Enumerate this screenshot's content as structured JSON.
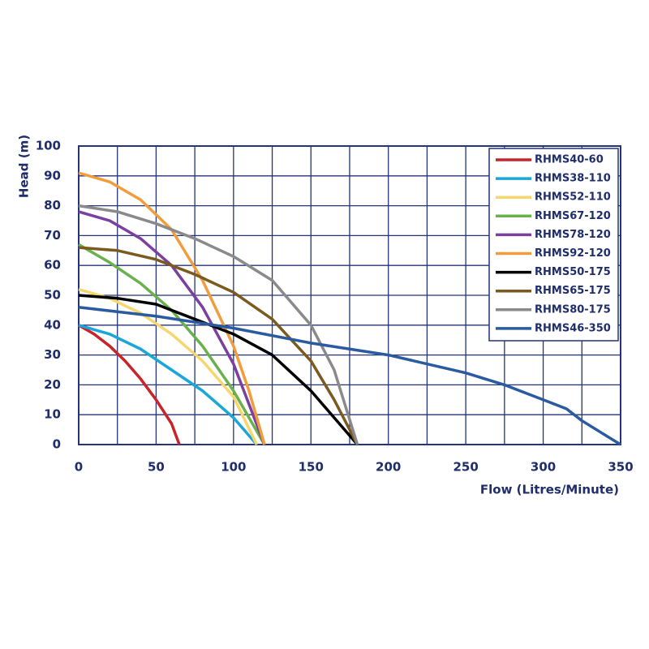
{
  "chart_data": {
    "type": "line",
    "x_label": "Flow (Litres/Minute)",
    "y_label": "Head (m)",
    "xlim": [
      0,
      350
    ],
    "xticks": [
      0,
      50,
      100,
      150,
      200,
      250,
      300,
      350
    ],
    "ylim": [
      0,
      100
    ],
    "yticks": [
      0,
      10,
      20,
      30,
      40,
      50,
      60,
      70,
      80,
      90,
      100
    ],
    "grid": true,
    "legend": "upper right",
    "series": [
      {
        "name": "RHMS40-60",
        "color": "#c8242b",
        "x": [
          0,
          10,
          20,
          30,
          40,
          50,
          60,
          65
        ],
        "values": [
          40,
          37,
          33,
          28,
          22,
          15,
          7,
          0
        ]
      },
      {
        "name": "RHMS38-110",
        "color": "#1aa7d8",
        "x": [
          0,
          20,
          40,
          60,
          80,
          100,
          115
        ],
        "values": [
          40,
          37,
          32,
          25,
          18,
          9,
          0
        ]
      },
      {
        "name": "RHMS52-110",
        "color": "#f5d76e",
        "x": [
          0,
          20,
          40,
          60,
          80,
          100,
          115
        ],
        "values": [
          52,
          49,
          44,
          37,
          28,
          16,
          0
        ]
      },
      {
        "name": "RHMS67-120",
        "color": "#6ab04c",
        "x": [
          0,
          20,
          40,
          60,
          80,
          100,
          120
        ],
        "values": [
          67,
          61,
          54,
          45,
          33,
          18,
          0
        ]
      },
      {
        "name": "RHMS78-120",
        "color": "#7b3fa0",
        "x": [
          0,
          20,
          40,
          60,
          80,
          100,
          120
        ],
        "values": [
          78,
          75,
          69,
          60,
          46,
          27,
          0
        ]
      },
      {
        "name": "RHMS92-120",
        "color": "#f39c3c",
        "x": [
          0,
          20,
          40,
          60,
          80,
          100,
          110,
          120
        ],
        "values": [
          91,
          88,
          82,
          72,
          55,
          33,
          18,
          0
        ]
      },
      {
        "name": "RHMS50-175",
        "color": "#000000",
        "x": [
          0,
          25,
          50,
          75,
          100,
          125,
          150,
          165,
          180
        ],
        "values": [
          50,
          49,
          47,
          42,
          37,
          30,
          18,
          9,
          0
        ]
      },
      {
        "name": "RHMS65-175",
        "color": "#7a5a1e",
        "x": [
          0,
          25,
          50,
          75,
          100,
          125,
          150,
          165,
          180
        ],
        "values": [
          66,
          65,
          62,
          57,
          51,
          42,
          28,
          15,
          0
        ]
      },
      {
        "name": "RHMS80-175",
        "color": "#8a8a8a",
        "x": [
          0,
          25,
          50,
          75,
          100,
          125,
          150,
          165,
          180
        ],
        "values": [
          80,
          78,
          74,
          69,
          63,
          55,
          40,
          25,
          0
        ]
      },
      {
        "name": "RHMS46-350",
        "color": "#2a5aa0",
        "x": [
          0,
          50,
          100,
          150,
          175,
          200,
          250,
          275,
          300,
          315,
          325,
          350
        ],
        "values": [
          46,
          43,
          39,
          34,
          32,
          30,
          24,
          20,
          15,
          12,
          8,
          0
        ]
      }
    ]
  }
}
